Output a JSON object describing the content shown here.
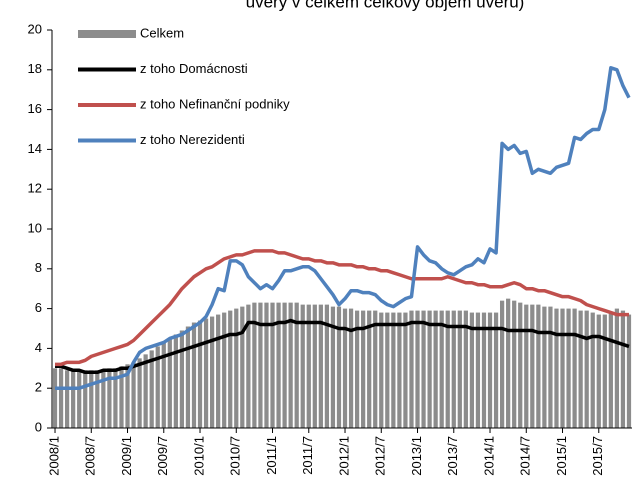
{
  "chart_data": {
    "type": "bar-line",
    "title": "úvěry v celkem celkový objem úvěrů)",
    "categories": [
      "2008/1",
      null,
      null,
      null,
      null,
      null,
      "2008/7",
      null,
      null,
      null,
      null,
      null,
      "2009/1",
      null,
      null,
      null,
      null,
      null,
      "2009/7",
      null,
      null,
      null,
      null,
      null,
      "2010/1",
      null,
      null,
      null,
      null,
      null,
      "2010/7",
      null,
      null,
      null,
      null,
      null,
      "2011/1",
      null,
      null,
      null,
      null,
      null,
      "2011/7",
      null,
      null,
      null,
      null,
      null,
      "2012/1",
      null,
      null,
      null,
      null,
      null,
      "2012/7",
      null,
      null,
      null,
      null,
      null,
      "2013/1",
      null,
      null,
      null,
      null,
      null,
      "2013/7",
      null,
      null,
      null,
      null,
      null,
      "2014/1",
      null,
      null,
      null,
      null,
      null,
      "2014/7",
      null,
      null,
      null,
      null,
      null,
      "2015/1",
      null,
      null,
      null,
      null,
      null,
      "2015/7",
      null,
      null,
      null,
      null,
      null
    ],
    "series": [
      {
        "name": "Celkem",
        "kind": "bar",
        "color": "#8c8c8c",
        "values": [
          3.0,
          3.0,
          2.9,
          2.9,
          2.9,
          2.9,
          2.9,
          2.9,
          2.9,
          3.0,
          3.0,
          3.1,
          3.2,
          3.3,
          3.5,
          3.7,
          3.9,
          4.1,
          4.3,
          4.5,
          4.7,
          4.9,
          5.1,
          5.3,
          5.4,
          5.5,
          5.6,
          5.7,
          5.8,
          5.9,
          6.0,
          6.1,
          6.2,
          6.3,
          6.3,
          6.3,
          6.3,
          6.3,
          6.3,
          6.3,
          6.3,
          6.2,
          6.2,
          6.2,
          6.2,
          6.2,
          6.1,
          6.1,
          6.0,
          6.0,
          5.9,
          5.9,
          5.9,
          5.9,
          5.8,
          5.8,
          5.8,
          5.8,
          5.8,
          5.9,
          5.9,
          5.9,
          5.9,
          5.9,
          5.9,
          5.9,
          5.9,
          5.9,
          5.9,
          5.8,
          5.8,
          5.8,
          5.8,
          5.8,
          6.4,
          6.5,
          6.4,
          6.3,
          6.2,
          6.2,
          6.2,
          6.1,
          6.1,
          6.0,
          6.0,
          6.0,
          6.0,
          5.9,
          5.9,
          5.8,
          5.7,
          5.7,
          5.8,
          6.0,
          5.9,
          5.7
        ]
      },
      {
        "name": "z toho Domácnosti",
        "kind": "line",
        "color": "#000000",
        "values": [
          3.1,
          3.1,
          3.0,
          2.9,
          2.9,
          2.8,
          2.8,
          2.8,
          2.9,
          2.9,
          2.9,
          3.0,
          3.0,
          3.1,
          3.2,
          3.3,
          3.4,
          3.5,
          3.6,
          3.7,
          3.8,
          3.9,
          4.0,
          4.1,
          4.2,
          4.3,
          4.4,
          4.5,
          4.6,
          4.7,
          4.7,
          4.8,
          5.3,
          5.3,
          5.2,
          5.2,
          5.2,
          5.3,
          5.3,
          5.4,
          5.3,
          5.3,
          5.3,
          5.3,
          5.3,
          5.2,
          5.1,
          5.0,
          5.0,
          4.9,
          5.0,
          5.0,
          5.1,
          5.2,
          5.2,
          5.2,
          5.2,
          5.2,
          5.2,
          5.3,
          5.3,
          5.3,
          5.2,
          5.2,
          5.2,
          5.1,
          5.1,
          5.1,
          5.1,
          5.0,
          5.0,
          5.0,
          5.0,
          5.0,
          5.0,
          4.9,
          4.9,
          4.9,
          4.9,
          4.9,
          4.8,
          4.8,
          4.8,
          4.7,
          4.7,
          4.7,
          4.7,
          4.6,
          4.5,
          4.6,
          4.6,
          4.5,
          4.4,
          4.3,
          4.2,
          4.1
        ]
      },
      {
        "name": "z toho Nefinanční podniky",
        "kind": "line",
        "color": "#c0504d",
        "values": [
          3.2,
          3.2,
          3.3,
          3.3,
          3.3,
          3.4,
          3.6,
          3.7,
          3.8,
          3.9,
          4.0,
          4.1,
          4.2,
          4.4,
          4.7,
          5.0,
          5.3,
          5.6,
          5.9,
          6.2,
          6.6,
          7.0,
          7.3,
          7.6,
          7.8,
          8.0,
          8.1,
          8.3,
          8.5,
          8.6,
          8.7,
          8.7,
          8.8,
          8.9,
          8.9,
          8.9,
          8.9,
          8.8,
          8.8,
          8.7,
          8.6,
          8.5,
          8.5,
          8.4,
          8.4,
          8.3,
          8.3,
          8.2,
          8.2,
          8.2,
          8.1,
          8.1,
          8.0,
          8.0,
          7.9,
          7.9,
          7.8,
          7.7,
          7.6,
          7.5,
          7.5,
          7.5,
          7.5,
          7.5,
          7.5,
          7.6,
          7.5,
          7.4,
          7.3,
          7.3,
          7.2,
          7.2,
          7.1,
          7.1,
          7.1,
          7.2,
          7.3,
          7.2,
          7.0,
          7.0,
          6.9,
          6.9,
          6.8,
          6.7,
          6.6,
          6.6,
          6.5,
          6.4,
          6.2,
          6.1,
          6.0,
          5.9,
          5.8,
          5.7,
          5.7,
          5.7
        ]
      },
      {
        "name": "z toho Nerezidenti",
        "kind": "line",
        "color": "#4f81bd",
        "values": [
          2.0,
          2.0,
          2.0,
          2.0,
          2.0,
          2.1,
          2.2,
          2.3,
          2.4,
          2.5,
          2.5,
          2.6,
          2.7,
          3.3,
          3.8,
          4.0,
          4.1,
          4.2,
          4.3,
          4.5,
          4.6,
          4.7,
          4.9,
          5.1,
          5.3,
          5.6,
          6.2,
          7.0,
          6.9,
          8.4,
          8.4,
          8.2,
          7.6,
          7.3,
          7.0,
          7.2,
          7.0,
          7.4,
          7.9,
          7.9,
          8.0,
          8.1,
          8.1,
          7.9,
          7.5,
          7.1,
          6.7,
          6.2,
          6.5,
          6.9,
          6.9,
          6.8,
          6.8,
          6.7,
          6.4,
          6.2,
          6.1,
          6.3,
          6.5,
          6.6,
          9.1,
          8.7,
          8.4,
          8.3,
          8.0,
          7.8,
          7.7,
          7.9,
          8.1,
          8.2,
          8.5,
          8.3,
          9.0,
          8.8,
          14.3,
          14.0,
          14.2,
          13.8,
          13.9,
          12.8,
          13.0,
          12.9,
          12.8,
          13.1,
          13.2,
          13.3,
          14.6,
          14.5,
          14.8,
          15.0,
          15.0,
          16.0,
          18.1,
          18.0,
          17.2,
          16.6
        ]
      }
    ],
    "ylim": [
      0,
      20
    ],
    "yticks": [
      0,
      2,
      4,
      6,
      8,
      10,
      12,
      14,
      16,
      18,
      20
    ],
    "grid": false,
    "legend": "upper-left"
  }
}
